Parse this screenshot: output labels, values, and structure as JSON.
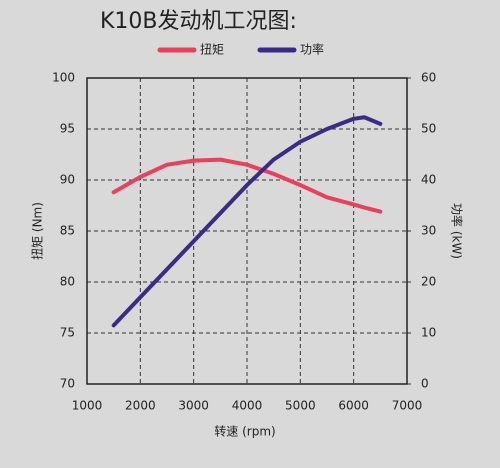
{
  "chart_data": {
    "type": "line",
    "title": "K10B发动机工况图:",
    "x_label": "转速 (rpm)",
    "y_label": "扭矩 (Nm)",
    "y2_label": "功率 (kW)",
    "x": [
      1500,
      2000,
      2500,
      3000,
      3500,
      4000,
      4500,
      5000,
      5500,
      6000,
      6200,
      6500
    ],
    "series": [
      {
        "name": "扭矩",
        "color": "#e8415e",
        "values": [
          88.8,
          90.3,
          91.5,
          91.9,
          92,
          91.5,
          90.6,
          89.5,
          88.3,
          87.6,
          87.3,
          86.9
        ]
      },
      {
        "name": "功率",
        "color": "#3b2a86",
        "axis": "y2",
        "values": [
          11.5,
          17,
          22.5,
          28,
          33.5,
          39,
          44,
          47.5,
          50,
          52,
          52.3,
          51
        ]
      }
    ],
    "xlim": [
      1000,
      7000
    ],
    "xticks": [
      1000,
      2000,
      3000,
      4000,
      5000,
      6000,
      7000
    ],
    "ylim": [
      70,
      100
    ],
    "yticks": [
      70,
      75,
      80,
      85,
      90,
      95,
      100
    ],
    "y2lim": [
      0,
      60
    ],
    "y2ticks": [
      0,
      10,
      20,
      30,
      40,
      50,
      60
    ],
    "grid": true
  }
}
